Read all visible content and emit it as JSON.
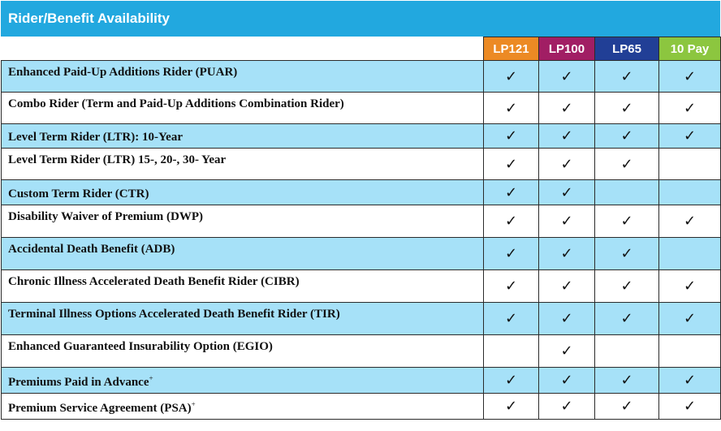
{
  "title": "Rider/Benefit Availability",
  "plans": [
    {
      "label": "LP121",
      "color": "#ec8a24"
    },
    {
      "label": "LP100",
      "color": "#a11e64"
    },
    {
      "label": "LP65",
      "color": "#213f96"
    },
    {
      "label": "10 Pay",
      "color": "#8cc63f"
    }
  ],
  "check_glyph": "✓",
  "rows": [
    {
      "label": "Enhanced Paid-Up Additions Rider (PUAR)",
      "sup": "",
      "avail": [
        true,
        true,
        true,
        true
      ]
    },
    {
      "label": "Combo Rider (Term and Paid-Up Additions Combination Rider)",
      "sup": "",
      "avail": [
        true,
        true,
        true,
        true
      ]
    },
    {
      "label": "Level Term Rider (LTR): 10-Year",
      "sup": "",
      "avail": [
        true,
        true,
        true,
        true
      ]
    },
    {
      "label": "Level Term Rider (LTR) 15-, 20-, 30- Year",
      "sup": "",
      "avail": [
        true,
        true,
        true,
        false
      ]
    },
    {
      "label": "Custom Term Rider (CTR)",
      "sup": "",
      "avail": [
        true,
        true,
        false,
        false
      ]
    },
    {
      "label": "Disability Waiver of Premium (DWP)",
      "sup": "",
      "avail": [
        true,
        true,
        true,
        true
      ]
    },
    {
      "label": "Accidental Death Benefit (ADB)",
      "sup": "",
      "avail": [
        true,
        true,
        true,
        false
      ]
    },
    {
      "label": "Chronic Illness Accelerated Death Benefit Rider (CIBR)",
      "sup": "",
      "avail": [
        true,
        true,
        true,
        true
      ]
    },
    {
      "label": "Terminal Illness Options Accelerated Death Benefit Rider (TIR)",
      "sup": "",
      "avail": [
        true,
        true,
        true,
        true
      ]
    },
    {
      "label": "Enhanced Guaranteed Insurability Option (EGIO)",
      "sup": "",
      "avail": [
        false,
        true,
        false,
        false
      ]
    },
    {
      "label": "Premiums Paid in Advance",
      "sup": "+",
      "avail": [
        true,
        true,
        true,
        true
      ]
    },
    {
      "label": "Premium Service Agreement (PSA)",
      "sup": "+",
      "avail": [
        true,
        true,
        true,
        true
      ]
    }
  ]
}
